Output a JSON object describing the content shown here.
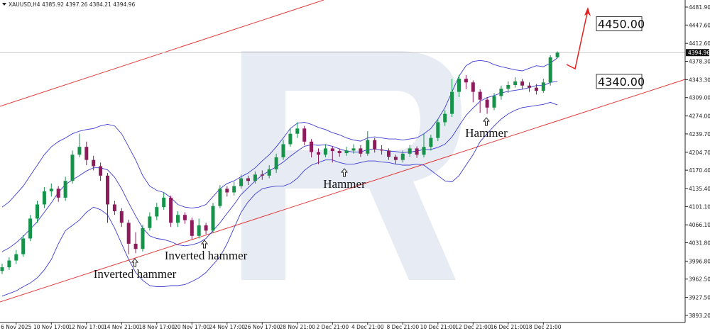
{
  "chart_data": {
    "type": "candlestick",
    "symbol": "XAUUSD,H4",
    "categories": [
      null,
      null,
      "6 Nov 2025",
      null,
      null,
      null,
      null,
      "10 Nov 17:00",
      null,
      null,
      null,
      null,
      "12 Nov 17:00",
      null,
      null,
      null,
      null,
      "14 Nov 21:00",
      null,
      null,
      null,
      null,
      "18 Nov 17:00",
      null,
      null,
      null,
      null,
      "20 Nov 17:00",
      null,
      null,
      null,
      null,
      "24 Nov 17:00",
      null,
      null,
      null,
      null,
      "26 Nov 17:00",
      null,
      null,
      null,
      null,
      "28 Nov 21:00",
      null,
      null,
      null,
      null,
      "2 Dec 21:00",
      null,
      null,
      null,
      null,
      "4 Dec 21:00",
      null,
      null,
      null,
      null,
      "8 Dec 21:00",
      null,
      null,
      null,
      null,
      "10 Dec 21:00",
      null,
      null,
      null,
      null,
      "12 Dec 21:00",
      null,
      null,
      null,
      null,
      "16 Dec 21:00",
      null,
      null,
      null,
      null,
      "18 Dec 21:00",
      null,
      null
    ],
    "open": [
      3978,
      3985,
      3998,
      4010,
      4040,
      4078,
      4105,
      4130,
      4135,
      4118,
      4150,
      4200,
      4215,
      4190,
      4178,
      4160,
      4105,
      4092,
      4070,
      4030,
      4020,
      4060,
      4082,
      4100,
      4118,
      4070,
      4085,
      4075,
      4045,
      4065,
      4055,
      4102,
      4135,
      4128,
      4140,
      4155,
      4150,
      4162,
      4160,
      4172,
      4195,
      4220,
      4240,
      4250,
      4225,
      4205,
      4200,
      4212,
      4207,
      4203,
      4208,
      4212,
      4202,
      4228,
      4210,
      4208,
      4196,
      4190,
      4202,
      4212,
      4200,
      4215,
      4232,
      4262,
      4278,
      4320,
      4345,
      4338,
      4320,
      4305,
      4290,
      4312,
      4326,
      4333,
      4340,
      4332,
      4328,
      4322,
      4338,
      4385.92
    ],
    "high": [
      3992,
      4004,
      4018,
      4046,
      4085,
      4112,
      4138,
      4145,
      4140,
      4158,
      4208,
      4240,
      4225,
      4198,
      4185,
      4165,
      4112,
      4098,
      4076,
      4052,
      4066,
      4090,
      4108,
      4128,
      4122,
      4092,
      4090,
      4080,
      4078,
      4070,
      4108,
      4142,
      4140,
      4148,
      4162,
      4160,
      4168,
      4170,
      4180,
      4202,
      4228,
      4250,
      4262,
      4255,
      4230,
      4212,
      4220,
      4216,
      4212,
      4215,
      4220,
      4218,
      4245,
      4232,
      4218,
      4212,
      4200,
      4208,
      4218,
      4216,
      4240,
      4238,
      4268,
      4285,
      4345,
      4352,
      4352,
      4342,
      4325,
      4310,
      4318,
      4332,
      4340,
      4348,
      4345,
      4338,
      4335,
      4345,
      4390,
      4397.26
    ],
    "low": [
      3972,
      3980,
      3992,
      4005,
      4035,
      4070,
      4098,
      4120,
      4110,
      4112,
      4145,
      4195,
      4180,
      4170,
      4150,
      4070,
      4085,
      4062,
      4010,
      4012,
      4015,
      4055,
      4075,
      4095,
      4062,
      4062,
      4068,
      4038,
      4040,
      4048,
      4050,
      4098,
      4120,
      4122,
      4135,
      4142,
      4145,
      4152,
      4155,
      4165,
      4190,
      4215,
      4232,
      4218,
      4195,
      4182,
      4195,
      4185,
      4196,
      4198,
      4202,
      4196,
      4198,
      4204,
      4200,
      4190,
      4182,
      4185,
      4196,
      4194,
      4195,
      4208,
      4226,
      4255,
      4272,
      4310,
      4325,
      4300,
      4280,
      4278,
      4285,
      4305,
      4318,
      4328,
      4325,
      4320,
      4315,
      4318,
      4332,
      4384.21
    ],
    "close": [
      3985,
      3998,
      4010,
      4040,
      4078,
      4105,
      4130,
      4135,
      4118,
      4150,
      4200,
      4215,
      4190,
      4178,
      4160,
      4105,
      4092,
      4070,
      4030,
      4020,
      4060,
      4082,
      4100,
      4118,
      4070,
      4085,
      4075,
      4045,
      4065,
      4055,
      4102,
      4135,
      4128,
      4140,
      4155,
      4150,
      4162,
      4160,
      4172,
      4195,
      4220,
      4240,
      4250,
      4225,
      4205,
      4200,
      4212,
      4207,
      4203,
      4208,
      4212,
      4202,
      4228,
      4210,
      4208,
      4196,
      4190,
      4202,
      4212,
      4200,
      4215,
      4232,
      4262,
      4278,
      4320,
      4345,
      4338,
      4320,
      4305,
      4290,
      4312,
      4326,
      4333,
      4340,
      4332,
      4328,
      4322,
      4338,
      4386,
      4394.96
    ],
    "up_color": "#16924a",
    "down_color": "#8e1c5c",
    "bollinger": {
      "color": "#3c3cd2",
      "upper": [
        4100,
        4110,
        4125,
        4140,
        4160,
        4180,
        4200,
        4215,
        4225,
        4232,
        4240,
        4245,
        4248,
        4250,
        4255,
        4258,
        4255,
        4240,
        4215,
        4190,
        4160,
        4140,
        4132,
        4128,
        4118,
        4105,
        4100,
        4098,
        4100,
        4105,
        4120,
        4135,
        4145,
        4150,
        4158,
        4165,
        4175,
        4188,
        4200,
        4215,
        4232,
        4250,
        4260,
        4262,
        4258,
        4252,
        4248,
        4242,
        4238,
        4232,
        4228,
        4226,
        4232,
        4234,
        4232,
        4230,
        4230,
        4228,
        4230,
        4232,
        4240,
        4250,
        4268,
        4290,
        4320,
        4350,
        4370,
        4378,
        4380,
        4378,
        4372,
        4368,
        4365,
        4362,
        4360,
        4365,
        4370,
        4368,
        4375,
        4385
      ],
      "middle": [
        4015,
        4022,
        4032,
        4044,
        4058,
        4072,
        4090,
        4108,
        4128,
        4143,
        4152,
        4160,
        4169,
        4175,
        4175,
        4171,
        4157,
        4135,
        4108,
        4083,
        4060,
        4045,
        4040,
        4038,
        4034,
        4028,
        4026,
        4028,
        4032,
        4040,
        4055,
        4070,
        4088,
        4105,
        4124,
        4137,
        4150,
        4161,
        4169,
        4177,
        4186,
        4197,
        4207,
        4216,
        4219,
        4218,
        4219,
        4216,
        4211,
        4207,
        4205,
        4205,
        4210,
        4211,
        4209,
        4207,
        4206,
        4204,
        4205,
        4207,
        4210,
        4210,
        4214,
        4220,
        4234,
        4255,
        4275,
        4289,
        4302,
        4309,
        4313,
        4318,
        4321,
        4323,
        4325,
        4328,
        4332,
        4332,
        4338,
        4340
      ],
      "lower": [
        3930,
        3935,
        3940,
        3948,
        3955,
        3965,
        3980,
        4000,
        4030,
        4055,
        4065,
        4075,
        4090,
        4100,
        4095,
        4085,
        4060,
        4030,
        4000,
        3975,
        3960,
        3950,
        3948,
        3948,
        3950,
        3950,
        3952,
        3958,
        3965,
        3975,
        3990,
        4005,
        4030,
        4060,
        4090,
        4110,
        4125,
        4135,
        4138,
        4140,
        4140,
        4145,
        4155,
        4170,
        4180,
        4185,
        4190,
        4190,
        4185,
        4182,
        4182,
        4185,
        4188,
        4188,
        4186,
        4185,
        4182,
        4180,
        4180,
        4182,
        4180,
        4170,
        4160,
        4150,
        4148,
        4160,
        4180,
        4200,
        4225,
        4240,
        4255,
        4268,
        4278,
        4285,
        4290,
        4292,
        4294,
        4296,
        4300,
        4295
      ]
    },
    "ylim": [
      3879.6,
      4495.4
    ],
    "yticks": [
      {
        "value": 4481.9,
        "label": "4481.90"
      },
      {
        "value": 4447.6,
        "label": "4447.60"
      },
      {
        "value": 4412.6,
        "label": "4412.60"
      },
      {
        "value": 4378.3,
        "label": "4378.30"
      },
      {
        "value": 4343.3,
        "label": "4343.30"
      },
      {
        "value": 4309,
        "label": "4309.00"
      },
      {
        "value": 4274,
        "label": "4274.00"
      },
      {
        "value": 4239.7,
        "label": "4239.70"
      },
      {
        "value": 4204.7,
        "label": "4204.70"
      },
      {
        "value": 4170.4,
        "label": "4170.40"
      },
      {
        "value": 4135.4,
        "label": "4135.40"
      },
      {
        "value": 4101.1,
        "label": "4101.10"
      },
      {
        "value": 4066.1,
        "label": "4066.10"
      },
      {
        "value": 4031.8,
        "label": "4031.80"
      },
      {
        "value": 3996.8,
        "label": "3996.80"
      },
      {
        "value": 3962.5,
        "label": "3962.50"
      },
      {
        "value": 3927.5,
        "label": "3927.50"
      },
      {
        "value": 3893.2,
        "label": "3893.20"
      }
    ],
    "levels": [
      {
        "value": 4450,
        "label": "4450.00"
      },
      {
        "value": 4340,
        "label": "4340.00"
      }
    ],
    "annotations": [
      "Inverted hammer",
      "Inverted hammer",
      "Hammer",
      "Hammer"
    ]
  }
}
